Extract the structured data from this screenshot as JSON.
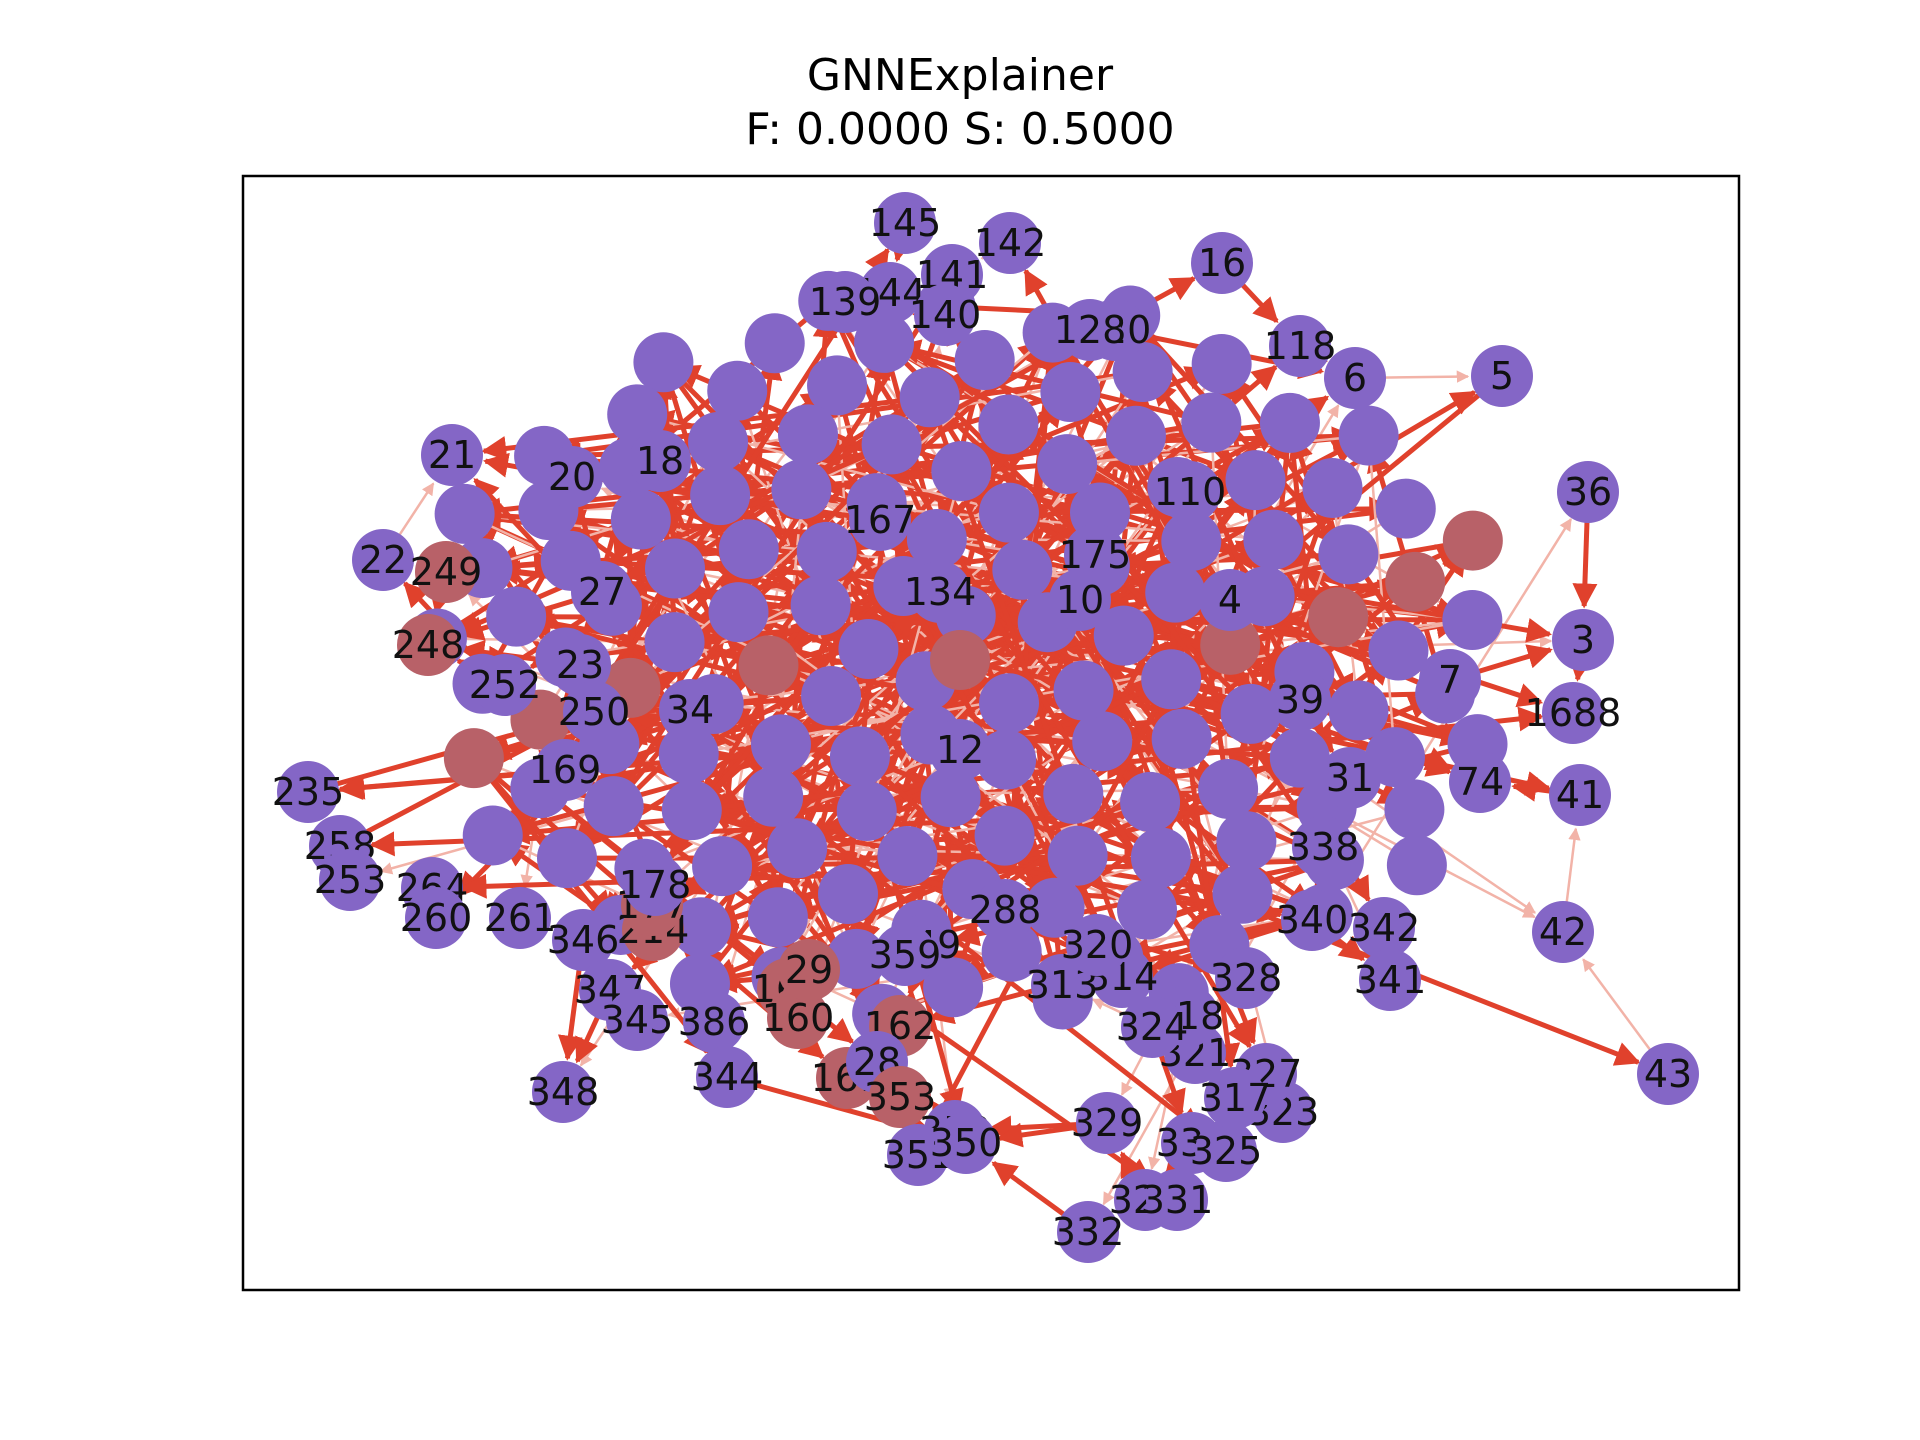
{
  "title": "GNNExplainer",
  "subtitle": "F: 0.0000  S: 0.5000",
  "colors": {
    "node": "#8466c6",
    "node_highlight": "#b86168",
    "edge_strong": "#e0412c",
    "edge_weak": "#f2b3a8",
    "frame": "#000000"
  },
  "graph": {
    "nodes": [
      {
        "id": "145"
      },
      {
        "id": "142"
      },
      {
        "id": "141"
      },
      {
        "id": "144"
      },
      {
        "id": "139"
      },
      {
        "id": "140"
      },
      {
        "id": "16"
      },
      {
        "id": "118"
      },
      {
        "id": "6"
      },
      {
        "id": "5"
      },
      {
        "id": "36"
      },
      {
        "id": "3"
      },
      {
        "id": "1688"
      },
      {
        "id": "74"
      },
      {
        "id": "41"
      },
      {
        "id": "42"
      },
      {
        "id": "43"
      },
      {
        "id": "21"
      },
      {
        "id": "20"
      },
      {
        "id": "18"
      },
      {
        "id": "22"
      },
      {
        "id": "249"
      },
      {
        "id": "27"
      },
      {
        "id": "248"
      },
      {
        "id": "23"
      },
      {
        "id": "252"
      },
      {
        "id": "250"
      },
      {
        "id": "235"
      },
      {
        "id": "258"
      },
      {
        "id": "253"
      },
      {
        "id": "264"
      },
      {
        "id": "260"
      },
      {
        "id": "261"
      },
      {
        "id": "346"
      },
      {
        "id": "214"
      },
      {
        "id": "177"
      },
      {
        "id": "347"
      },
      {
        "id": "345"
      },
      {
        "id": "348"
      },
      {
        "id": "386"
      },
      {
        "id": "163"
      },
      {
        "id": "160"
      },
      {
        "id": "29"
      },
      {
        "id": "162"
      },
      {
        "id": "161"
      },
      {
        "id": "28"
      },
      {
        "id": "344"
      },
      {
        "id": "353"
      },
      {
        "id": "352"
      },
      {
        "id": "351"
      },
      {
        "id": "350"
      },
      {
        "id": "332"
      },
      {
        "id": "326"
      },
      {
        "id": "331"
      },
      {
        "id": "329"
      },
      {
        "id": "330"
      },
      {
        "id": "325"
      },
      {
        "id": "323"
      },
      {
        "id": "327"
      },
      {
        "id": "317"
      },
      {
        "id": "321"
      },
      {
        "id": "318"
      },
      {
        "id": "324"
      },
      {
        "id": "314"
      },
      {
        "id": "313"
      },
      {
        "id": "320"
      },
      {
        "id": "328"
      },
      {
        "id": "340"
      },
      {
        "id": "342"
      },
      {
        "id": "341"
      },
      {
        "id": "338"
      },
      {
        "id": "31"
      },
      {
        "id": "167"
      },
      {
        "id": "120"
      },
      {
        "id": "128"
      },
      {
        "id": "110"
      },
      {
        "id": "175"
      },
      {
        "id": "134"
      },
      {
        "id": "149"
      },
      {
        "id": "359"
      },
      {
        "id": "288"
      },
      {
        "id": "178"
      },
      {
        "id": "169"
      },
      {
        "id": "34"
      },
      {
        "id": "12"
      },
      {
        "id": "10"
      },
      {
        "id": "4"
      },
      {
        "id": "39"
      },
      {
        "id": "7"
      }
    ]
  }
}
